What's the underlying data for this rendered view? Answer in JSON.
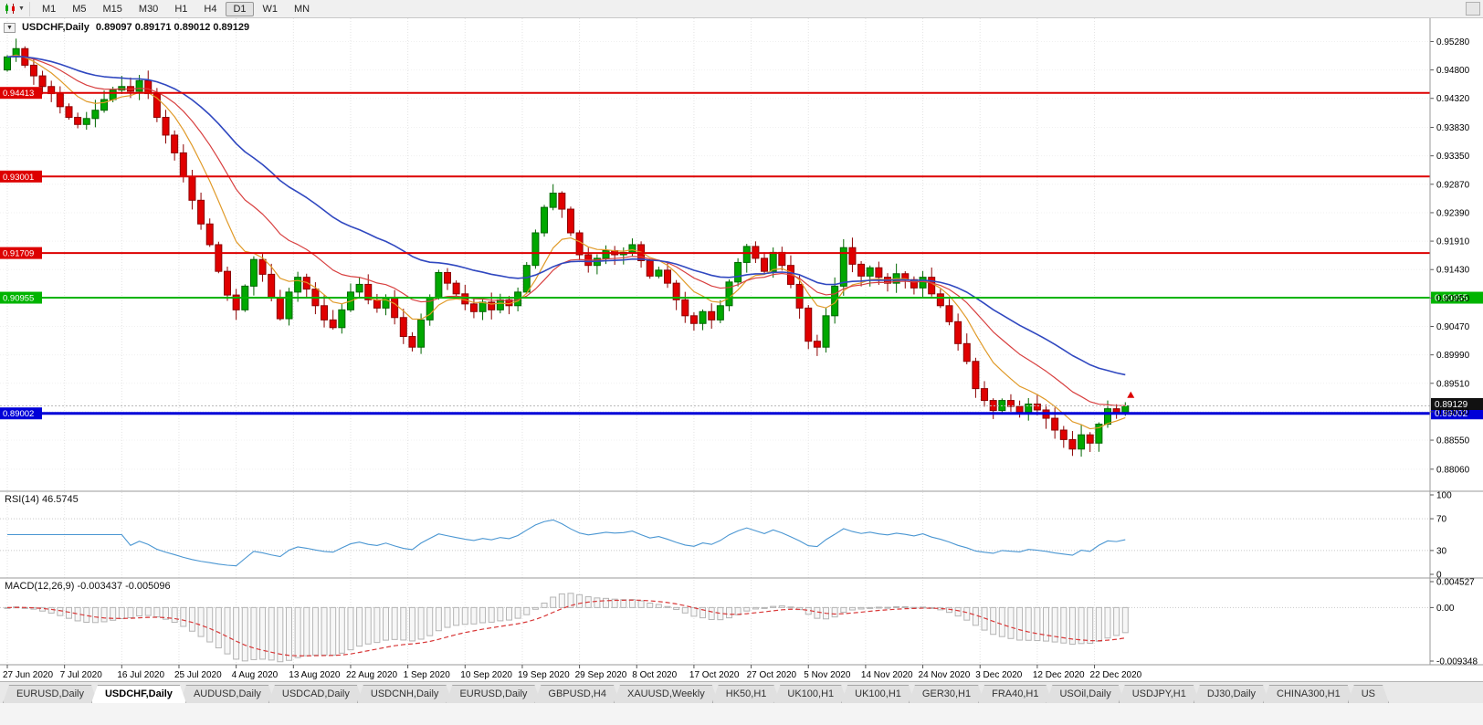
{
  "icons": {
    "dropdown_caret": "▼",
    "collapse": "▼"
  },
  "toolbar": {
    "timeframes": [
      "M1",
      "M5",
      "M15",
      "M30",
      "H1",
      "H4",
      "D1",
      "W1",
      "MN"
    ],
    "active": "D1"
  },
  "chart_data": {
    "type": "candlestick",
    "title": "USDCHF,Daily",
    "ohlc_label": "0.89097 0.89171 0.89012 0.89129",
    "current_bar": {
      "open": 0.89097,
      "high": 0.89171,
      "low": 0.89012,
      "close": 0.89129
    },
    "candle_up_color": "#00a800",
    "candle_down_color": "#e00000",
    "first_open": 0.948,
    "closes": [
      0.9502,
      0.9516,
      0.9488,
      0.947,
      0.9452,
      0.944,
      0.9418,
      0.94,
      0.9388,
      0.9398,
      0.9412,
      0.943,
      0.9446,
      0.9452,
      0.9444,
      0.9462,
      0.944,
      0.94,
      0.937,
      0.934,
      0.93,
      0.926,
      0.922,
      0.9185,
      0.914,
      0.91,
      0.9075,
      0.9115,
      0.916,
      0.9135,
      0.9095,
      0.906,
      0.9105,
      0.913,
      0.911,
      0.9082,
      0.9058,
      0.9045,
      0.9075,
      0.9105,
      0.9118,
      0.9092,
      0.9078,
      0.9095,
      0.9062,
      0.903,
      0.9012,
      0.9058,
      0.9096,
      0.9138,
      0.912,
      0.9102,
      0.9085,
      0.9072,
      0.9088,
      0.9075,
      0.9092,
      0.9082,
      0.9105,
      0.915,
      0.9205,
      0.9248,
      0.9272,
      0.9245,
      0.9205,
      0.9168,
      0.915,
      0.9162,
      0.9175,
      0.9168,
      0.9172,
      0.9185,
      0.9158,
      0.9132,
      0.9142,
      0.912,
      0.9092,
      0.9065,
      0.9052,
      0.9072,
      0.9058,
      0.9082,
      0.9122,
      0.9155,
      0.9182,
      0.9162,
      0.914,
      0.9172,
      0.915,
      0.9118,
      0.9078,
      0.9022,
      0.9012,
      0.9065,
      0.9115,
      0.918,
      0.9152,
      0.9132,
      0.9146,
      0.913,
      0.912,
      0.9136,
      0.9126,
      0.9112,
      0.913,
      0.9102,
      0.9082,
      0.9055,
      0.9018,
      0.8988,
      0.8942,
      0.8922,
      0.8905,
      0.8922,
      0.8912,
      0.8902,
      0.8916,
      0.8906,
      0.8892,
      0.8872,
      0.8856,
      0.884,
      0.8864,
      0.885,
      0.8882,
      0.8908,
      0.8902,
      0.89129
    ],
    "x_labels": [
      "27 Jun 2020",
      "7 Jul 2020",
      "16 Jul 2020",
      "25 Jul 2020",
      "4 Aug 2020",
      "13 Aug 2020",
      "22 Aug 2020",
      "1 Sep 2020",
      "10 Sep 2020",
      "19 Sep 2020",
      "29 Sep 2020",
      "8 Oct 2020",
      "17 Oct 2020",
      "27 Oct 2020",
      "5 Nov 2020",
      "14 Nov 2020",
      "24 Nov 2020",
      "3 Dec 2020",
      "12 Dec 2020",
      "22 Dec 2020"
    ],
    "y_ticks": [
      "0.95280",
      "0.94800",
      "0.94320",
      "0.93830",
      "0.93350",
      "0.92870",
      "0.92390",
      "0.91910",
      "0.91430",
      "0.90950",
      "0.90470",
      "0.89990",
      "0.89510",
      "0.89030",
      "0.88550",
      "0.88060"
    ],
    "levels": [
      {
        "value": 0.94413,
        "label": "0.94413",
        "color": "#dd0000",
        "width": 2,
        "right_box": false
      },
      {
        "value": 0.93001,
        "label": "0.93001",
        "color": "#dd0000",
        "width": 2,
        "right_box": false
      },
      {
        "value": 0.91709,
        "label": "0.91709",
        "color": "#dd0000",
        "width": 2,
        "right_box": false
      },
      {
        "value": 0.90955,
        "label": "0.90955",
        "color": "#00b400",
        "width": 2,
        "right_box": true
      },
      {
        "value": 0.89002,
        "label": "0.89002",
        "color": "#0000d8",
        "width": 3,
        "right_box": true
      }
    ],
    "bid": {
      "value": 0.89129,
      "label": "0.89129",
      "color": "#111111"
    },
    "moving_averages": [
      {
        "period": 8,
        "color": "#e09a28",
        "width": 1.2
      },
      {
        "period": 17,
        "color": "#d84040",
        "width": 1.2
      },
      {
        "period": 34,
        "color": "#3048c0",
        "width": 1.6
      }
    ],
    "indicators": {
      "rsi": {
        "label": "RSI(14) 46.5745",
        "period": 14,
        "value": 46.5745,
        "levels": [
          70,
          30
        ],
        "ticks": [
          {
            "v": 100,
            "t": "100"
          },
          {
            "v": 70,
            "t": "70"
          },
          {
            "v": 30,
            "t": "30"
          },
          {
            "v": 0,
            "t": "0"
          }
        ],
        "range": [
          0,
          100
        ],
        "color": "#4a96d2"
      },
      "macd": {
        "label": "MACD(12,26,9) -0.003437 -0.005096",
        "fast": 12,
        "slow": 26,
        "signal_period": 9,
        "macd_value": -0.003437,
        "signal_value": -0.005096,
        "ticks": [
          {
            "v": 0.004527,
            "t": "0.004527"
          },
          {
            "v": 0,
            "t": "0.00"
          },
          {
            "v": -0.009348,
            "t": "-0.009348"
          }
        ],
        "range": [
          -0.009348,
          0.004527
        ],
        "histogram_color": "#b4b4b4",
        "signal_color": "#d83838"
      }
    }
  },
  "tabs": {
    "active_index": 1,
    "items": [
      "EURUSD,Daily",
      "USDCHF,Daily",
      "AUDUSD,Daily",
      "USDCAD,Daily",
      "USDCNH,Daily",
      "EURUSD,Daily",
      "GBPUSD,H4",
      "XAUUSD,Weekly",
      "HK50,H1",
      "UK100,H1",
      "UK100,H1",
      "GER30,H1",
      "FRA40,H1",
      "USOil,Daily",
      "USDJPY,H1",
      "DJ30,Daily",
      "CHINA300,H1",
      "US"
    ]
  }
}
